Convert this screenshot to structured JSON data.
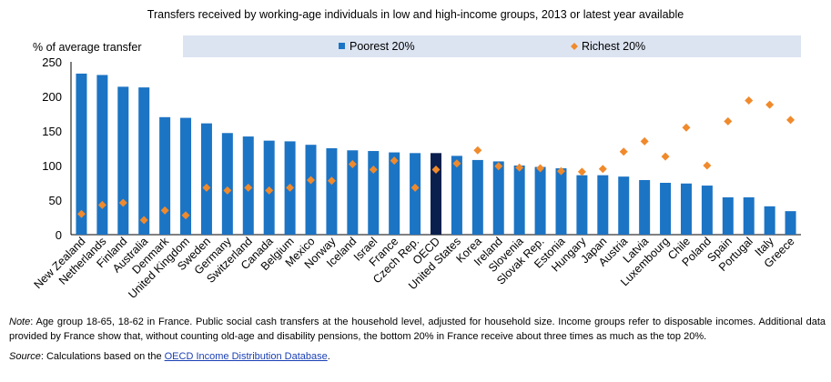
{
  "chart_data": {
    "type": "bar",
    "title": "Transfers received by working-age individuals in low and high-income groups, 2013 or latest year available",
    "ylabel": "% of average transfer",
    "ylim": [
      0,
      250
    ],
    "yticks": [
      0,
      50,
      100,
      150,
      200,
      250
    ],
    "highlight_category": "OECD",
    "colors": {
      "poorest": "#1c74c4",
      "richest": "#f08a2c",
      "highlight": "#0a1f4e",
      "legend_band": "#dce4f2"
    },
    "categories": [
      "New Zealand",
      "Netherlands",
      "Finland",
      "Australia",
      "Denmark",
      "United Kingdom",
      "Sweden",
      "Germany",
      "Switzerland",
      "Canada",
      "Belgium",
      "Mexico",
      "Norway",
      "Iceland",
      "Israel",
      "France",
      "Czech Rep.",
      "OECD",
      "United States",
      "Korea",
      "Ireland",
      "Slovenia",
      "Slovak Rep.",
      "Estonia",
      "Hungary",
      "Japan",
      "Austria",
      "Latvia",
      "Luxembourg",
      "Chile",
      "Poland",
      "Spain",
      "Portugal",
      "Italy",
      "Greece"
    ],
    "series": [
      {
        "name": "Poorest 20%",
        "kind": "bar",
        "values": [
          233,
          231,
          214,
          213,
          170,
          169,
          161,
          147,
          142,
          136,
          135,
          130,
          125,
          122,
          121,
          119,
          118,
          118,
          114,
          108,
          106,
          100,
          98,
          96,
          86,
          86,
          84,
          79,
          75,
          74,
          71,
          54,
          54,
          41,
          34
        ]
      },
      {
        "name": "Richest 20%",
        "kind": "marker",
        "values": [
          30,
          43,
          46,
          21,
          35,
          28,
          68,
          64,
          68,
          64,
          68,
          79,
          78,
          102,
          94,
          107,
          68,
          94,
          103,
          122,
          99,
          97,
          96,
          92,
          91,
          95,
          120,
          135,
          113,
          155,
          100,
          164,
          194,
          188,
          166
        ]
      }
    ]
  },
  "notes": {
    "note_label": "Note",
    "note_text": ": Age group 18-65, 18-62 in France. Public social cash transfers at the household level, adjusted for household size. Income groups refer to disposable incomes. Additional data provided by France show that, without counting old-age and disability pensions, the bottom 20% in France receive about three times as much as the top 20%.",
    "source_label": "Source",
    "source_text": ": Calculations based on the ",
    "source_link": "OECD Income Distribution Database",
    "source_end": "."
  }
}
